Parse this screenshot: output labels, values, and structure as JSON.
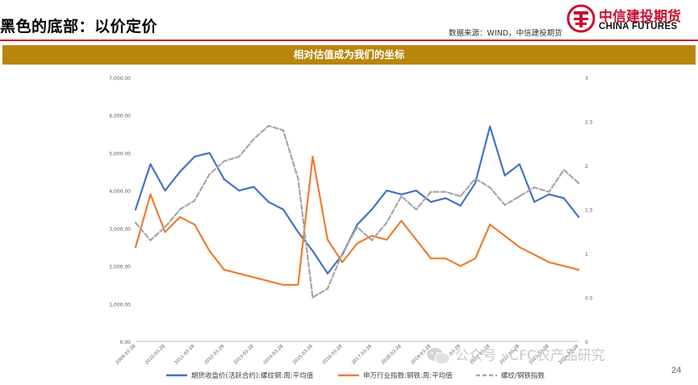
{
  "header": {
    "title": "黑色的底部：以价定价",
    "source": "数据来源：WIND，中信建投期货",
    "logo_cn": "中信建投期货",
    "logo_en": "CHINA FUTURES",
    "accent_color": "#c8102e"
  },
  "banner": {
    "text": "相对估值成为我们的坐标",
    "color": "#b8860b"
  },
  "watermark": {
    "text": "公众号 · CFC农产品研究",
    "icon": "wechat-icon"
  },
  "page_number": "24",
  "chart_data": {
    "type": "line",
    "title": "",
    "xlabel": "",
    "ylabel": "",
    "ylim": [
      0,
      7000
    ],
    "y2lim": [
      0,
      3
    ],
    "yticks": [
      "0.00",
      "1,000.00",
      "2,000.00",
      "3,000.00",
      "4,000.00",
      "5,000.00",
      "6,000.00",
      "7,000.00"
    ],
    "y2ticks": [
      "0",
      "0.5",
      "1",
      "1.5",
      "2",
      "2.5",
      "3"
    ],
    "x": [
      "2009-03-28",
      "2009-09-28",
      "2010-03-28",
      "2010-09-28",
      "2011-03-28",
      "2011-09-28",
      "2012-03-28",
      "2012-09-28",
      "2013-03-28",
      "2013-09-28",
      "2014-03-28",
      "2014-09-28",
      "2015-03-28",
      "2015-09-28",
      "2016-03-28",
      "2016-09-28",
      "2017-03-28",
      "2017-09-28",
      "2018-03-28",
      "2018-09-28",
      "2019-03-28",
      "2019-09-28",
      "2020-03-28",
      "2020-09-28",
      "2021-03-28",
      "2021-09-28",
      "2022-03-28",
      "2022-09-28",
      "2023-03-28",
      "2023-09-28",
      "2024-03-28"
    ],
    "xtick_labels": [
      "2009-03-28",
      "2010-03-28",
      "2011-03-28",
      "2012-03-28",
      "2013-03-28",
      "2014-03-28",
      "2015-03-28",
      "2016-03-28",
      "2017-03-28",
      "2018-03-28",
      "2019-03-28",
      "2020-03-28",
      "2021-03-28",
      "2022-03-28",
      "2023-03-28",
      "2024-03-28"
    ],
    "grid": false,
    "legend_position": "bottom",
    "series": [
      {
        "name": "期货收盘价(活跃合约):螺纹钢:周:平均值",
        "axis": "left",
        "color": "#4472c4",
        "dashed": false,
        "values": [
          3500,
          4700,
          4000,
          4500,
          4900,
          5000,
          4300,
          4000,
          4100,
          3700,
          3500,
          2900,
          2400,
          1800,
          2300,
          3100,
          3500,
          4000,
          3900,
          4000,
          3700,
          3800,
          3600,
          4200,
          5700,
          4400,
          4700,
          3700,
          3900,
          3800,
          3300
        ]
      },
      {
        "name": "申万行业指数:钢铁:周:平均值",
        "axis": "left",
        "color": "#ed7d31",
        "dashed": false,
        "values": [
          2500,
          3900,
          2900,
          3300,
          3100,
          2400,
          1900,
          1800,
          1700,
          1600,
          1500,
          1500,
          4900,
          2700,
          2100,
          2600,
          2800,
          2700,
          3200,
          2700,
          2200,
          2200,
          2000,
          2200,
          3100,
          2800,
          2500,
          2300,
          2100,
          2000,
          1900
        ]
      },
      {
        "name": "螺纹/钢铁指数",
        "axis": "right",
        "color": "#a6a6a6",
        "dashed": true,
        "values": [
          1.35,
          1.15,
          1.3,
          1.5,
          1.6,
          1.9,
          2.05,
          2.1,
          2.3,
          2.45,
          2.4,
          1.85,
          0.5,
          0.6,
          1.0,
          1.3,
          1.15,
          1.35,
          1.65,
          1.5,
          1.7,
          1.7,
          1.65,
          1.85,
          1.75,
          1.55,
          1.65,
          1.75,
          1.7,
          1.95,
          1.8
        ]
      }
    ]
  }
}
